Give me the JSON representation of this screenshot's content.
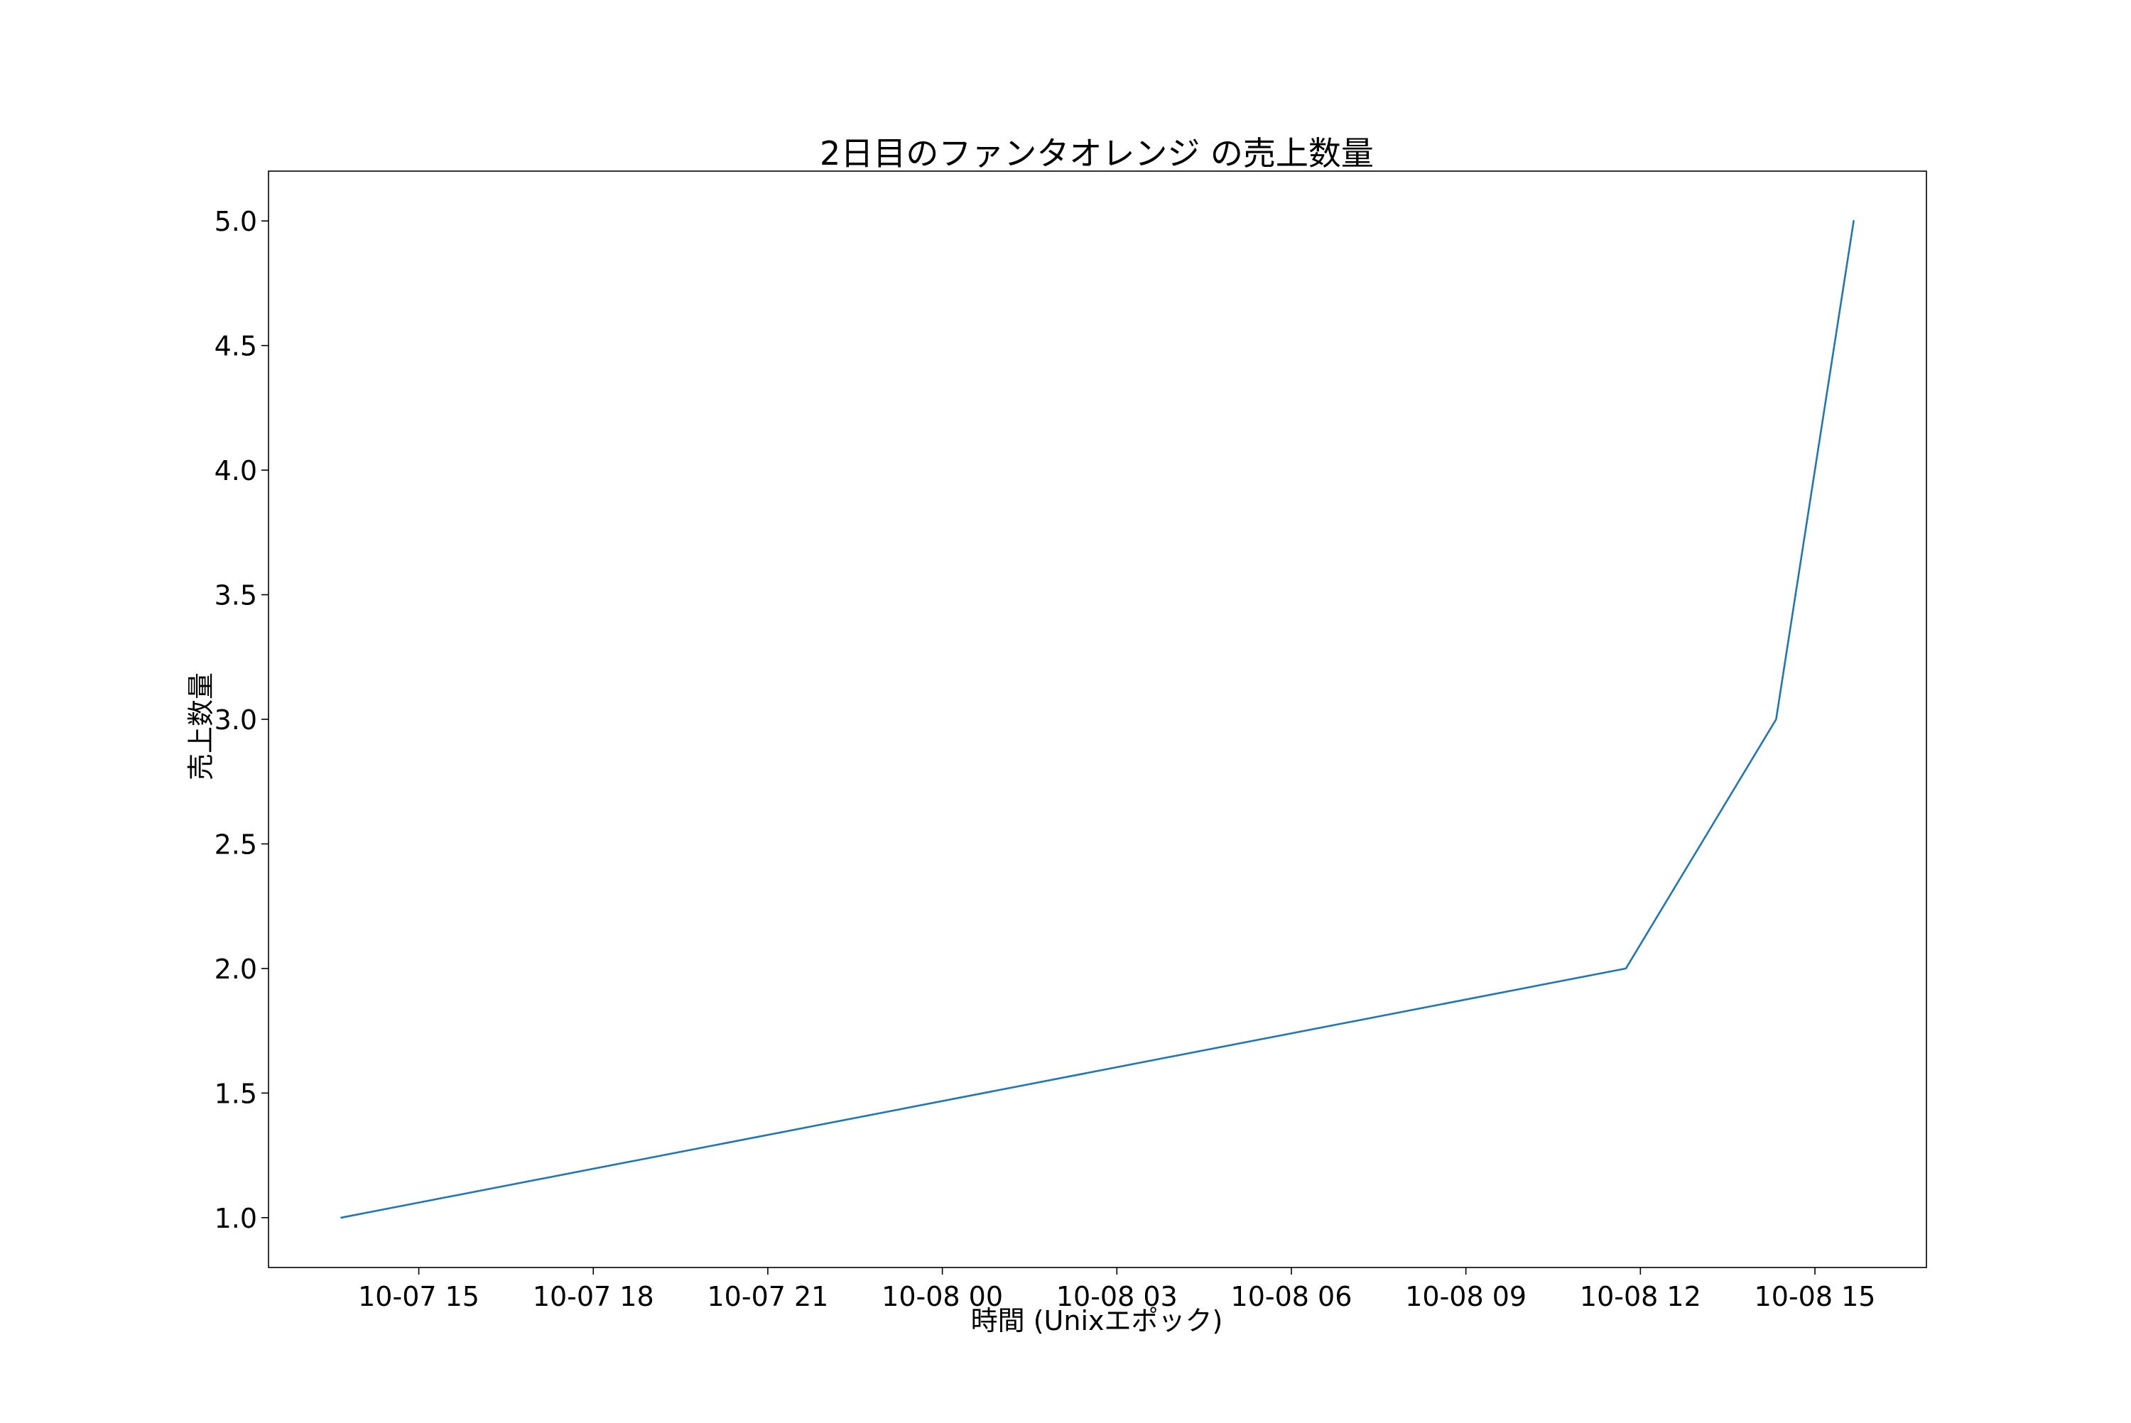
{
  "colors": {
    "background": "#ffffff",
    "axes": "#000000",
    "series_line": "#1f77b4"
  },
  "chart_data": {
    "type": "line",
    "title": "2日目のファンタオレンジ の売上数量",
    "xlabel": "時間 (Unixエポック)",
    "ylabel": "売上数量",
    "grid": false,
    "legend": "none",
    "x_axis_kind": "datetime",
    "xlim": [
      "2024-10-07 12:25",
      "2024-10-08 16:55"
    ],
    "ylim": [
      0.8,
      5.2
    ],
    "x_ticks": [
      {
        "value": "2024-10-07 15:00",
        "label": "10-07 15"
      },
      {
        "value": "2024-10-07 18:00",
        "label": "10-07 18"
      },
      {
        "value": "2024-10-07 21:00",
        "label": "10-07 21"
      },
      {
        "value": "2024-10-08 00:00",
        "label": "10-08 00"
      },
      {
        "value": "2024-10-08 03:00",
        "label": "10-08 03"
      },
      {
        "value": "2024-10-08 06:00",
        "label": "10-08 06"
      },
      {
        "value": "2024-10-08 09:00",
        "label": "10-08 09"
      },
      {
        "value": "2024-10-08 12:00",
        "label": "10-08 12"
      },
      {
        "value": "2024-10-08 15:00",
        "label": "10-08 15"
      }
    ],
    "y_ticks": [
      {
        "value": 1.0,
        "label": "1.0"
      },
      {
        "value": 1.5,
        "label": "1.5"
      },
      {
        "value": 2.0,
        "label": "2.0"
      },
      {
        "value": 2.5,
        "label": "2.5"
      },
      {
        "value": 3.0,
        "label": "3.0"
      },
      {
        "value": 3.5,
        "label": "3.5"
      },
      {
        "value": 4.0,
        "label": "4.0"
      },
      {
        "value": 4.5,
        "label": "4.5"
      },
      {
        "value": 5.0,
        "label": "5.0"
      }
    ],
    "series": [
      {
        "x": [
          "2024-10-07 13:40",
          "2024-10-08 11:45",
          "2024-10-08 14:20",
          "2024-10-08 15:40"
        ],
        "y": [
          1,
          2,
          3,
          5
        ]
      }
    ]
  }
}
